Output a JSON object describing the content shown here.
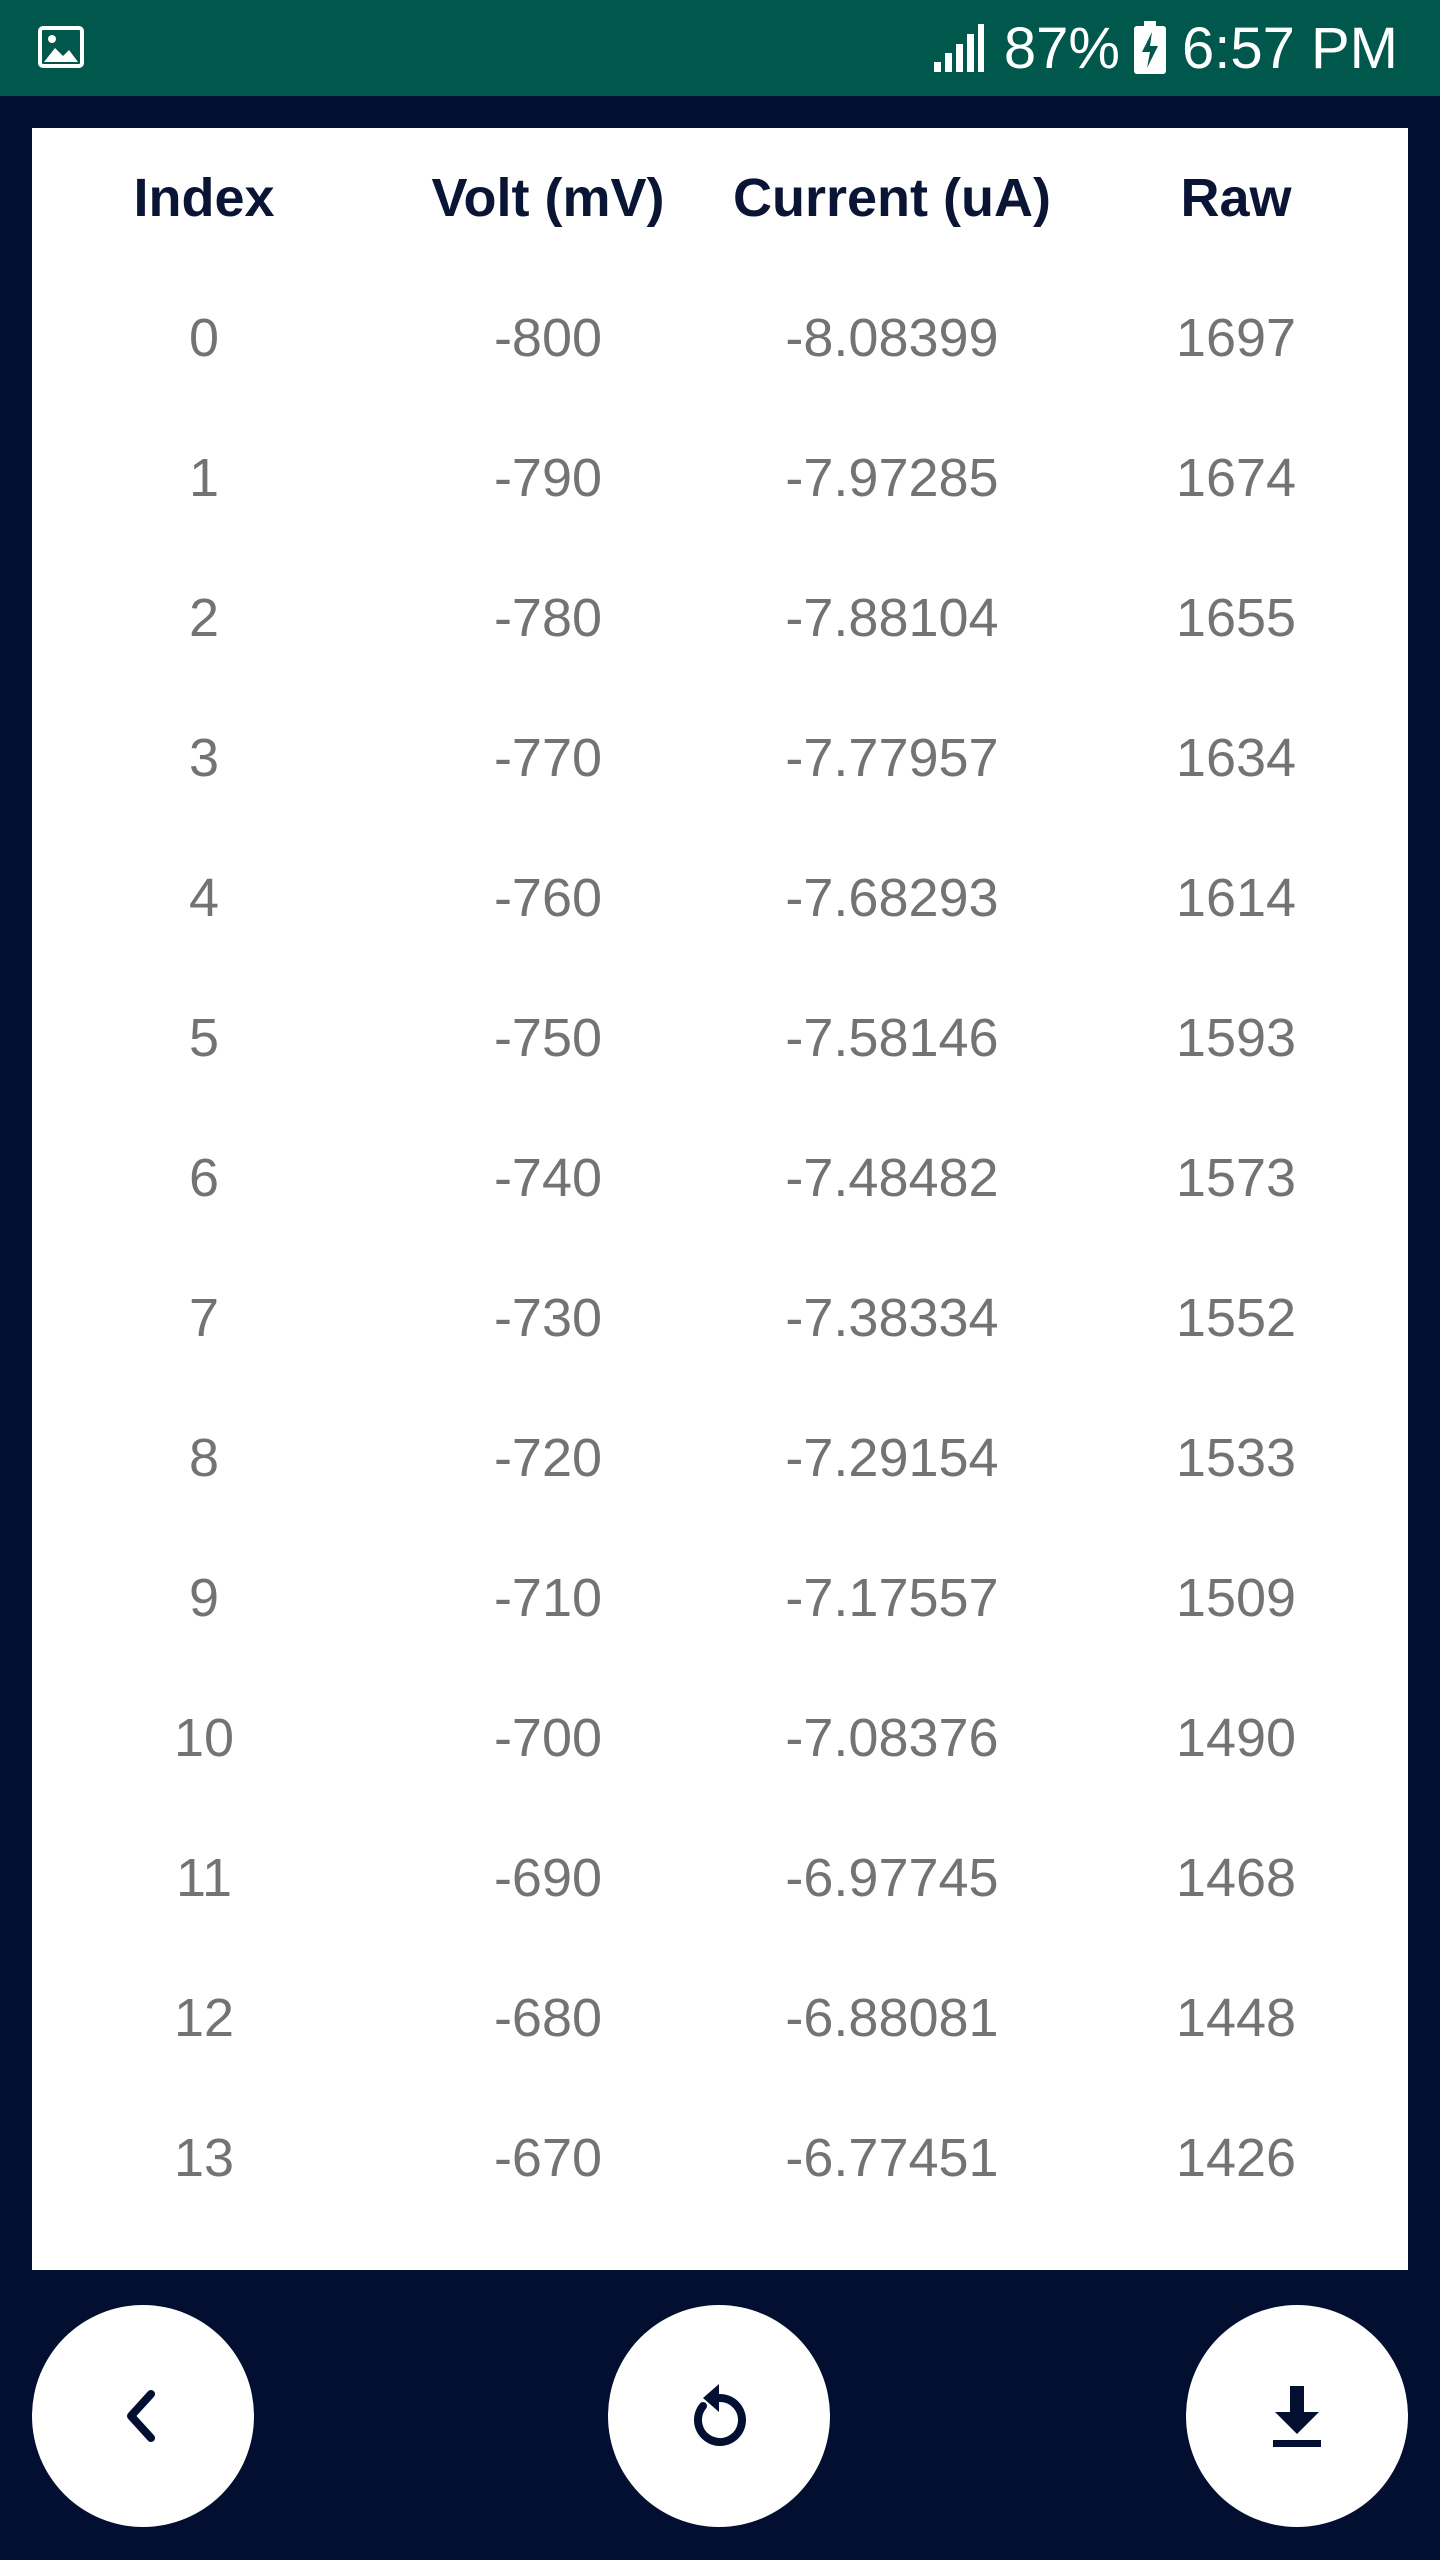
{
  "status_bar": {
    "battery": "87%",
    "time": "6:57 PM",
    "bg_color": "#00574b",
    "left_icon": "image-icon",
    "icons": [
      "signal-icon",
      "battery-charging-icon"
    ]
  },
  "table": {
    "headers": [
      "Index",
      "Volt (mV)",
      "Current (uA)",
      "Raw"
    ],
    "rows": [
      [
        "0",
        "-800",
        "-8.08399",
        "1697"
      ],
      [
        "1",
        "-790",
        "-7.97285",
        "1674"
      ],
      [
        "2",
        "-780",
        "-7.88104",
        "1655"
      ],
      [
        "3",
        "-770",
        "-7.77957",
        "1634"
      ],
      [
        "4",
        "-760",
        "-7.68293",
        "1614"
      ],
      [
        "5",
        "-750",
        "-7.58146",
        "1593"
      ],
      [
        "6",
        "-740",
        "-7.48482",
        "1573"
      ],
      [
        "7",
        "-730",
        "-7.38334",
        "1552"
      ],
      [
        "8",
        "-720",
        "-7.29154",
        "1533"
      ],
      [
        "9",
        "-710",
        "-7.17557",
        "1509"
      ],
      [
        "10",
        "-700",
        "-7.08376",
        "1490"
      ],
      [
        "11",
        "-690",
        "-6.97745",
        "1468"
      ],
      [
        "12",
        "-680",
        "-6.88081",
        "1448"
      ],
      [
        "13",
        "-670",
        "-6.77451",
        "1426"
      ]
    ]
  },
  "actions": {
    "back_icon": "chevron-left-icon",
    "refresh_icon": "refresh-icon",
    "download_icon": "download-icon"
  },
  "colors": {
    "background": "#020f30",
    "header_text": "#0a1535",
    "cell_text": "#737373"
  }
}
